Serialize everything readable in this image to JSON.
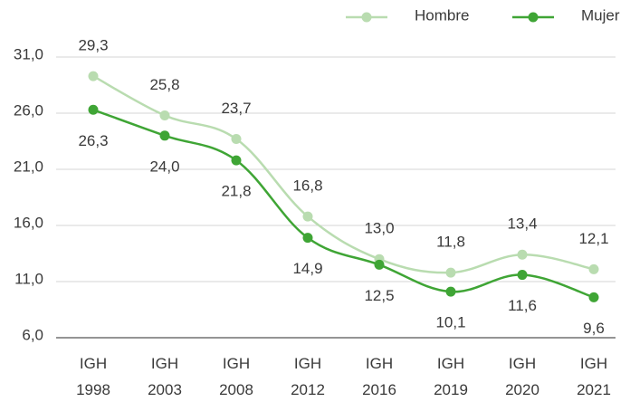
{
  "chart_data": {
    "type": "line",
    "categories": [
      "IGH 1998",
      "IGH 2003",
      "IGH 2008",
      "IGH 2012",
      "IGH 2016",
      "IGH 2019",
      "IGH 2020",
      "IGH 2021"
    ],
    "series": [
      {
        "name": "Hombre",
        "color": "#b9dcb0",
        "values": [
          29.3,
          25.8,
          23.7,
          16.8,
          13.0,
          11.8,
          13.4,
          12.1
        ],
        "value_labels": [
          "29,3",
          "25,8",
          "23,7",
          "16,8",
          "13,0",
          "11,8",
          "13,4",
          "12,1"
        ]
      },
      {
        "name": "Mujer",
        "color": "#3fa535",
        "values": [
          26.3,
          24.0,
          21.8,
          14.9,
          12.5,
          10.1,
          11.6,
          9.6
        ],
        "value_labels": [
          "26,3",
          "24,0",
          "21,8",
          "14,9",
          "12,5",
          "10,1",
          "11,6",
          "9,6"
        ]
      }
    ],
    "ylim": [
      6,
      31
    ],
    "yticks": [
      {
        "value": 6,
        "label": "6,0"
      },
      {
        "value": 11,
        "label": "11,0"
      },
      {
        "value": 16,
        "label": "16,0"
      },
      {
        "value": 21,
        "label": "21,0"
      },
      {
        "value": 26,
        "label": "26,0"
      },
      {
        "value": 31,
        "label": "31,0"
      }
    ],
    "grid": true,
    "legend": "top"
  }
}
